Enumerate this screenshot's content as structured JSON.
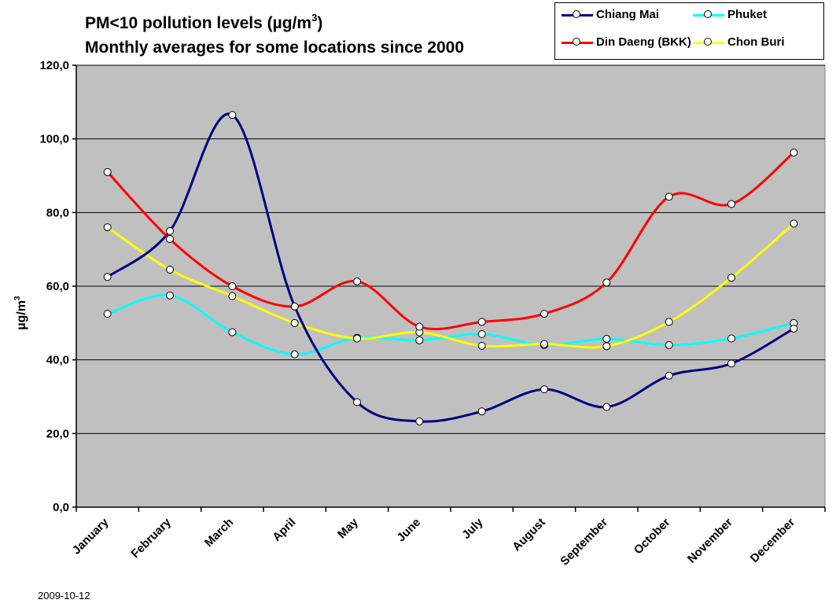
{
  "title": {
    "line1_prefix": "PM<10 pollution levels (µg/m",
    "line1_sup": "3",
    "line1_suffix": ")",
    "line2": "Monthly averages for some locations since 2000"
  },
  "footer_date": "2009-10-12",
  "chart_data": {
    "type": "line",
    "smooth": true,
    "categories": [
      "January",
      "February",
      "March",
      "April",
      "May",
      "June",
      "July",
      "August",
      "September",
      "October",
      "November",
      "December"
    ],
    "ylabel": "µg/m",
    "ylabel_sup": "3",
    "ylim": [
      0,
      120
    ],
    "yticks": [
      0,
      20,
      40,
      60,
      80,
      100,
      120
    ],
    "ytick_labels": [
      "0,0",
      "20,0",
      "40,0",
      "60,0",
      "80,0",
      "100,0",
      "120,0"
    ],
    "grid": true,
    "plot_background": "#c0c0c0",
    "legend_position": "top-right",
    "series": [
      {
        "name": "Chiang Mai",
        "color": "#000080",
        "values": [
          62.5,
          75.0,
          106.5,
          54.5,
          28.5,
          23.3,
          26.0,
          32.0,
          27.2,
          35.7,
          39.0,
          48.5
        ]
      },
      {
        "name": "Phuket",
        "color": "#00ffff",
        "values": [
          52.5,
          57.5,
          47.5,
          41.5,
          46.0,
          45.3,
          47.0,
          44.0,
          45.7,
          44.0,
          45.8,
          50.0
        ]
      },
      {
        "name": "Din Daeng (BKK)",
        "color": "#ff0000",
        "values": [
          91.0,
          72.8,
          60.0,
          54.5,
          61.3,
          49.0,
          50.3,
          52.5,
          61.0,
          84.3,
          82.3,
          96.3
        ]
      },
      {
        "name": "Chon Buri",
        "color": "#ffff00",
        "values": [
          76.0,
          64.5,
          57.3,
          50.0,
          45.8,
          47.5,
          43.8,
          44.3,
          43.7,
          50.3,
          62.3,
          77.0
        ]
      }
    ]
  }
}
